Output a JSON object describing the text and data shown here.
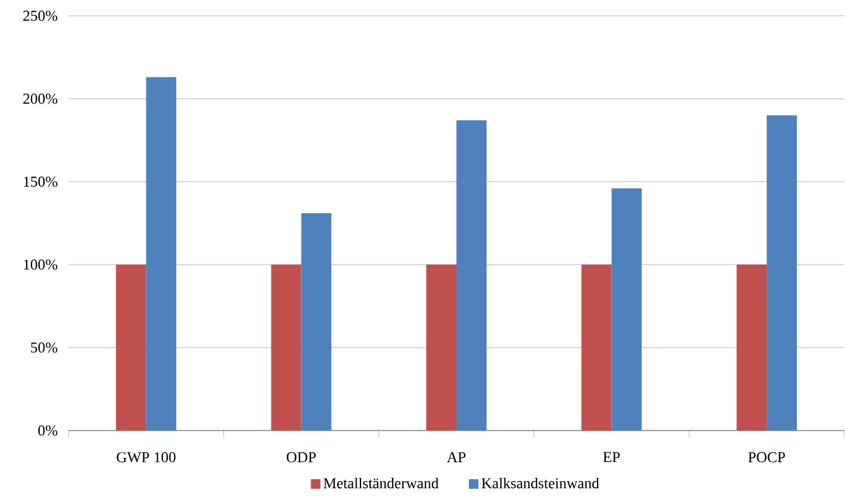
{
  "chart_data": {
    "type": "bar",
    "categories": [
      "GWP 100",
      "ODP",
      "AP",
      "EP",
      "POCP"
    ],
    "series": [
      {
        "name": "Metallständerwand",
        "color": "#c0504d",
        "values": [
          100,
          100,
          100,
          100,
          100
        ]
      },
      {
        "name": "Kalksandsteinwand",
        "color": "#4f81bd",
        "values": [
          213,
          131,
          187,
          146,
          190
        ]
      }
    ],
    "ylim": [
      0,
      250
    ],
    "yticks": [
      {
        "value": 0,
        "label": "0%"
      },
      {
        "value": 50,
        "label": "50%"
      },
      {
        "value": 100,
        "label": "100%"
      },
      {
        "value": 150,
        "label": "150%"
      },
      {
        "value": 200,
        "label": "200%"
      },
      {
        "value": 250,
        "label": "250%"
      }
    ],
    "grid": "y",
    "legend": "bottom"
  }
}
